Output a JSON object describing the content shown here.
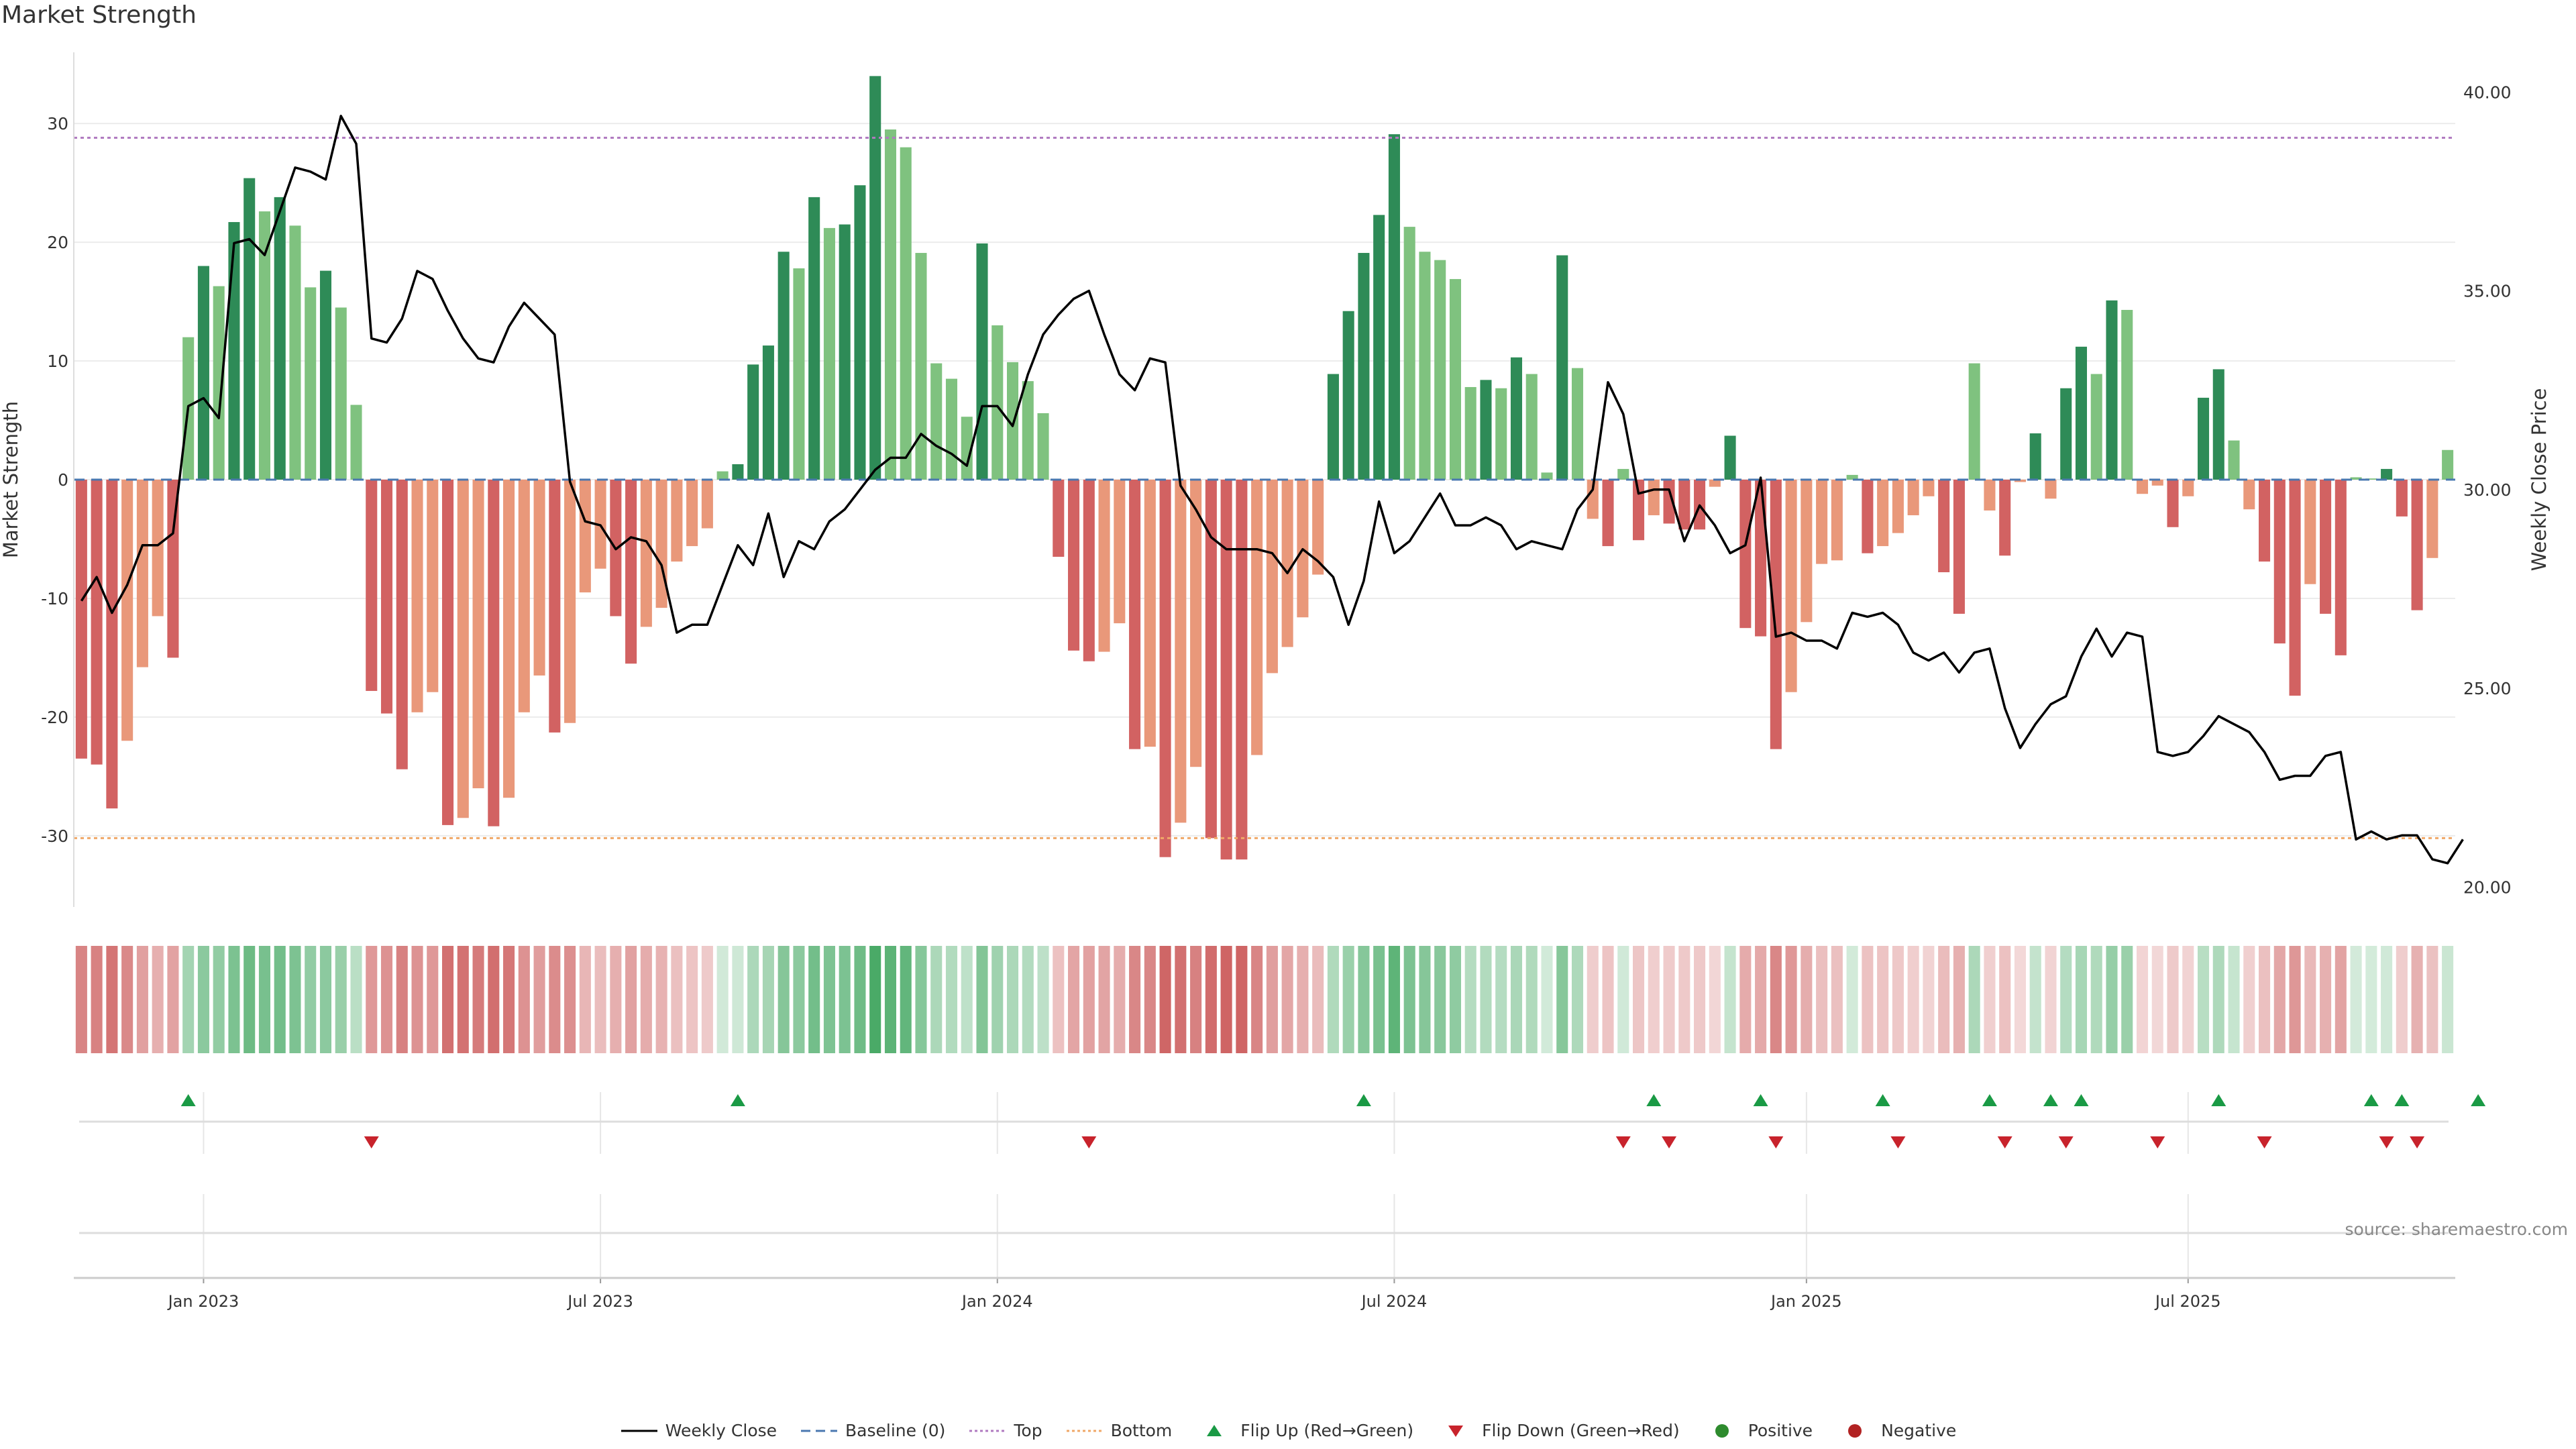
{
  "title": "Market Strength",
  "source": "source: sharemaestro.com",
  "chart_data": {
    "type": "bar",
    "start_date": "2022-11-07",
    "x_ticks": [
      {
        "label": "Jan 2023",
        "date": "2023-01-02"
      },
      {
        "label": "Jul 2023",
        "date": "2023-07-03"
      },
      {
        "label": "Jan 2024",
        "date": "2024-01-01"
      },
      {
        "label": "Jul 2024",
        "date": "2024-07-01"
      },
      {
        "label": "Jan 2025",
        "date": "2025-01-06"
      },
      {
        "label": "Jul 2025",
        "date": "2025-06-30"
      }
    ],
    "y_left": {
      "label": "Market Strength",
      "min": -36,
      "max": 36,
      "ticks": [
        -30,
        -20,
        -10,
        0,
        10,
        20,
        30
      ]
    },
    "y_right": {
      "label": "Weekly Close Price",
      "min": 19.5,
      "max": 41,
      "ticks": [
        20,
        25,
        30,
        35,
        40
      ],
      "tick_labels": [
        "20.00",
        "25.00",
        "30.00",
        "35.00",
        "40.00"
      ]
    },
    "top_line": 28.8,
    "bottom_line": -30.2,
    "strength": [
      -23.5,
      -24,
      -27.7,
      -22,
      -15.8,
      -11.5,
      -15,
      12,
      18,
      16.3,
      21.7,
      25.4,
      22.6,
      23.8,
      21.4,
      16.2,
      17.6,
      14.5,
      6.3,
      -17.8,
      -19.7,
      -24.4,
      -19.6,
      -17.9,
      -29.1,
      -28.5,
      -26,
      -29.2,
      -26.8,
      -19.6,
      -16.5,
      -21.3,
      -20.5,
      -9.5,
      -7.5,
      -11.5,
      -15.5,
      -12.4,
      -10.8,
      -6.9,
      -5.6,
      -4.1,
      0.7,
      1.3,
      9.7,
      11.3,
      19.2,
      17.8,
      23.8,
      21.2,
      21.5,
      24.8,
      34,
      29.5,
      28,
      19.1,
      9.8,
      8.5,
      5.3,
      19.9,
      13,
      9.9,
      8.3,
      5.6,
      -6.5,
      -14.4,
      -15.3,
      -14.5,
      -12.1,
      -22.7,
      -22.5,
      -31.8,
      -28.9,
      -24.2,
      -30.2,
      -32,
      -32,
      -23.2,
      -16.3,
      -14.1,
      -11.6,
      -8,
      8.9,
      14.2,
      19.1,
      22.3,
      29.1,
      21.3,
      19.2,
      18.5,
      16.9,
      7.8,
      8.4,
      7.7,
      10.3,
      8.9,
      0.6,
      18.9,
      9.4,
      -3.3,
      -5.6,
      0.9,
      -5.1,
      -3,
      -3.7,
      -4.2,
      -4.2,
      -0.6,
      3.7,
      -12.5,
      -13.2,
      -22.7,
      -17.9,
      -12,
      -7.1,
      -6.8,
      0.4,
      -6.2,
      -5.6,
      -4.5,
      -3,
      -1.4,
      -7.8,
      -11.3,
      9.8,
      -2.6,
      -6.4,
      -0.2,
      3.9,
      -1.6,
      7.7,
      11.2,
      8.9,
      15.1,
      14.3,
      -1.2,
      -0.5,
      -4,
      -1.4,
      6.9,
      9.3,
      3.3,
      -2.5,
      -6.9,
      -13.8,
      -18.2,
      -8.8,
      -11.3,
      -14.8,
      0.2,
      0.1,
      0.9,
      -3.1,
      -11,
      -6.6,
      2.5
    ],
    "weekly_close": [
      27.2,
      27.8,
      26.9,
      27.6,
      28.6,
      28.6,
      28.9,
      32.1,
      32.3,
      31.8,
      36.2,
      36.3,
      35.9,
      37,
      38.1,
      38,
      37.8,
      39.4,
      38.7,
      33.8,
      33.7,
      34.3,
      35.5,
      35.3,
      34.5,
      33.8,
      33.3,
      33.2,
      34.1,
      34.7,
      34.3,
      33.9,
      30.2,
      29.2,
      29.1,
      28.5,
      28.8,
      28.7,
      28.1,
      26.4,
      26.6,
      26.6,
      27.6,
      28.6,
      28.1,
      29.4,
      27.8,
      28.7,
      28.5,
      29.2,
      29.5,
      30,
      30.5,
      30.8,
      30.8,
      31.4,
      31.1,
      30.9,
      30.6,
      32.1,
      32.1,
      31.6,
      32.9,
      33.9,
      34.4,
      34.8,
      35,
      33.9,
      32.9,
      32.5,
      33.3,
      33.2,
      30.1,
      29.5,
      28.8,
      28.5,
      28.5,
      28.5,
      28.4,
      27.9,
      28.5,
      28.2,
      27.8,
      26.6,
      27.7,
      29.7,
      28.4,
      28.7,
      29.3,
      29.9,
      29.1,
      29.1,
      29.3,
      29.1,
      28.5,
      28.7,
      28.6,
      28.5,
      29.5,
      30,
      32.7,
      31.9,
      29.9,
      30,
      30,
      28.7,
      29.6,
      29.1,
      28.4,
      28.6,
      30.3,
      26.3,
      26.4,
      26.2,
      26.2,
      26,
      26.9,
      26.8,
      26.9,
      26.6,
      25.9,
      25.7,
      25.9,
      25.4,
      25.9,
      26,
      24.5,
      23.5,
      24.1,
      24.6,
      24.8,
      25.8,
      26.5,
      25.8,
      26.4,
      26.3,
      23.4,
      23.3,
      23.4,
      23.8,
      24.3,
      24.1,
      23.9,
      23.4,
      22.7,
      22.8,
      22.8,
      23.3,
      23.4,
      21.2,
      21.4,
      21.2,
      21.3,
      21.3,
      20.7,
      20.6,
      21.2
    ],
    "flip_up": [
      7,
      43,
      84,
      103,
      110,
      118,
      125,
      129,
      131,
      140,
      150,
      152,
      157
    ],
    "flip_down": [
      19,
      66,
      101,
      104,
      111,
      119,
      126,
      130,
      136,
      143,
      151,
      153
    ],
    "colors": {
      "green_dark": "#2e8b57",
      "green_light": "#7fc27f",
      "red_dark": "#d26262",
      "red_light": "#e9987a",
      "top_line": "#b07ac0",
      "bottom_line": "#f0a868",
      "baseline": "#4a78b0",
      "flip_up": "#1a9a45",
      "flip_down": "#c8232c",
      "positive": "#2e8b2e",
      "negative": "#b22222",
      "close_line": "#000000"
    },
    "legend": [
      {
        "label": "Weekly Close",
        "kind": "line-solid",
        "color": "#000000"
      },
      {
        "label": "Baseline (0)",
        "kind": "line-dash",
        "color": "#4a78b0"
      },
      {
        "label": "Top",
        "kind": "line-dot",
        "color": "#b07ac0"
      },
      {
        "label": "Bottom",
        "kind": "line-dot",
        "color": "#f0a868"
      },
      {
        "label": "Flip Up (Red→Green)",
        "kind": "tri-up",
        "color": "#1a9a45"
      },
      {
        "label": "Flip Down (Green→Red)",
        "kind": "tri-down",
        "color": "#c8232c"
      },
      {
        "label": "Positive",
        "kind": "dot",
        "color": "#2e8b2e"
      },
      {
        "label": "Negative",
        "kind": "dot",
        "color": "#b22222"
      }
    ]
  }
}
